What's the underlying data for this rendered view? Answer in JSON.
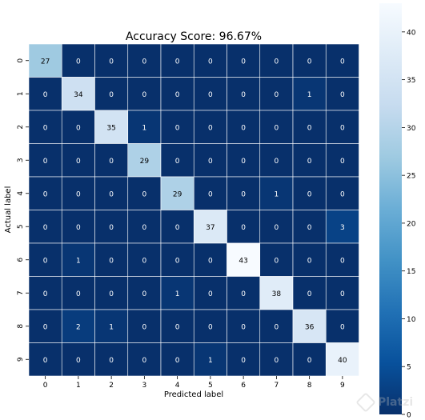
{
  "chart_data": {
    "type": "heatmap",
    "title": "Accuracy Score: 96.67%",
    "xlabel": "Predicted label",
    "ylabel": "Actual label",
    "x_categories": [
      "0",
      "1",
      "2",
      "3",
      "4",
      "5",
      "6",
      "7",
      "8",
      "9"
    ],
    "y_categories": [
      "0",
      "1",
      "2",
      "3",
      "4",
      "5",
      "6",
      "7",
      "8",
      "9"
    ],
    "values": [
      [
        27,
        0,
        0,
        0,
        0,
        0,
        0,
        0,
        0,
        0
      ],
      [
        0,
        34,
        0,
        0,
        0,
        0,
        0,
        0,
        1,
        0
      ],
      [
        0,
        0,
        35,
        1,
        0,
        0,
        0,
        0,
        0,
        0
      ],
      [
        0,
        0,
        0,
        29,
        0,
        0,
        0,
        0,
        0,
        0
      ],
      [
        0,
        0,
        0,
        0,
        29,
        0,
        0,
        1,
        0,
        0
      ],
      [
        0,
        0,
        0,
        0,
        0,
        37,
        0,
        0,
        0,
        3
      ],
      [
        0,
        1,
        0,
        0,
        0,
        0,
        43,
        0,
        0,
        0
      ],
      [
        0,
        0,
        0,
        0,
        1,
        0,
        0,
        38,
        0,
        0
      ],
      [
        0,
        2,
        1,
        0,
        0,
        0,
        0,
        0,
        36,
        0
      ],
      [
        0,
        0,
        0,
        0,
        0,
        1,
        0,
        0,
        0,
        40
      ]
    ],
    "colormap": "Blues_r",
    "color_low": "#08306b",
    "color_high": "#f7fbff",
    "colorbar": {
      "range": [
        0,
        43
      ],
      "ticks": [
        0,
        5,
        10,
        15,
        20,
        25,
        30,
        35,
        40
      ]
    },
    "grid": "white cell borders",
    "legend": "colorbar right"
  },
  "watermark": {
    "text": "Platzi"
  }
}
